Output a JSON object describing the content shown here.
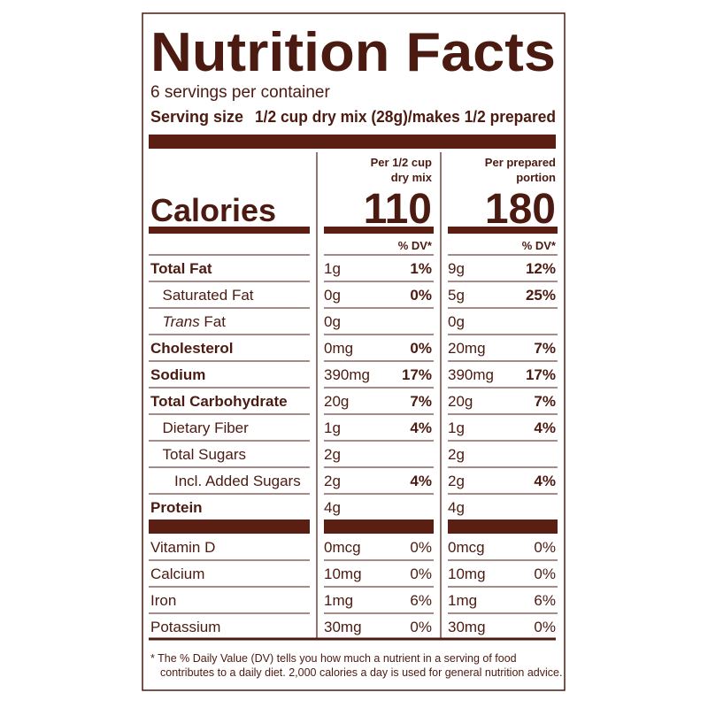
{
  "title": "Nutrition Facts",
  "servings": "6 servings per container",
  "serving_size_label": "Serving size",
  "serving_size": "1/2 cup dry mix (28g)/makes 1/2 prepared",
  "calories_label": "Calories",
  "columns": [
    {
      "header": [
        "Per 1/2 cup",
        "dry mix"
      ],
      "calories": "110",
      "dv_header": "% DV*"
    },
    {
      "header": [
        "Per prepared",
        "portion"
      ],
      "calories": "180",
      "dv_header": "% DV*"
    }
  ],
  "nutrients": [
    {
      "name": "Total Fat",
      "bold": true,
      "level": 0,
      "values": [
        {
          "amount": "1g",
          "dv": "1%"
        },
        {
          "amount": "9g",
          "dv": "12%"
        }
      ]
    },
    {
      "name": "Saturated Fat",
      "bold": false,
      "level": 1,
      "values": [
        {
          "amount": "0g",
          "dv": "0%"
        },
        {
          "amount": "5g",
          "dv": "25%"
        }
      ]
    },
    {
      "name_italic": "Trans",
      "name": " Fat",
      "bold": false,
      "level": 1,
      "values": [
        {
          "amount": "0g"
        },
        {
          "amount": "0g"
        }
      ]
    },
    {
      "name": "Cholesterol",
      "bold": true,
      "level": 0,
      "values": [
        {
          "amount": "0mg",
          "dv": "0%"
        },
        {
          "amount": "20mg",
          "dv": "7%"
        }
      ]
    },
    {
      "name": "Sodium",
      "bold": true,
      "level": 0,
      "values": [
        {
          "amount": "390mg",
          "dv": "17%"
        },
        {
          "amount": "390mg",
          "dv": "17%"
        }
      ]
    },
    {
      "name": "Total Carbohydrate",
      "bold": true,
      "level": 0,
      "values": [
        {
          "amount": "20g",
          "dv": "7%"
        },
        {
          "amount": "20g",
          "dv": "7%"
        }
      ]
    },
    {
      "name": "Dietary Fiber",
      "bold": false,
      "level": 1,
      "values": [
        {
          "amount": "1g",
          "dv": "4%"
        },
        {
          "amount": "1g",
          "dv": "4%"
        }
      ]
    },
    {
      "name": "Total Sugars",
      "bold": false,
      "level": 1,
      "values": [
        {
          "amount": "2g"
        },
        {
          "amount": "2g"
        }
      ]
    },
    {
      "name": "Incl. Added Sugars",
      "bold": false,
      "level": 2,
      "values": [
        {
          "amount": "2g",
          "dv": "4%"
        },
        {
          "amount": "2g",
          "dv": "4%"
        }
      ]
    },
    {
      "name": "Protein",
      "bold": true,
      "level": 0,
      "values": [
        {
          "amount": "4g"
        },
        {
          "amount": "4g"
        }
      ]
    }
  ],
  "vitamins": [
    {
      "name": "Vitamin D",
      "values": [
        {
          "amount": "0mcg",
          "dv": "0%"
        },
        {
          "amount": "0mcg",
          "dv": "0%"
        }
      ]
    },
    {
      "name": "Calcium",
      "values": [
        {
          "amount": "10mg",
          "dv": "0%"
        },
        {
          "amount": "10mg",
          "dv": "0%"
        }
      ]
    },
    {
      "name": "Iron",
      "values": [
        {
          "amount": "1mg",
          "dv": "6%"
        },
        {
          "amount": "1mg",
          "dv": "6%"
        }
      ]
    },
    {
      "name": "Potassium",
      "values": [
        {
          "amount": "30mg",
          "dv": "0%"
        },
        {
          "amount": "30mg",
          "dv": "0%"
        }
      ]
    }
  ],
  "footnote": [
    "* The % Daily Value (DV) tells you how much a nutrient in a serving of food",
    "contributes to a daily diet. 2,000 calories a day is used for general nutrition advice."
  ]
}
